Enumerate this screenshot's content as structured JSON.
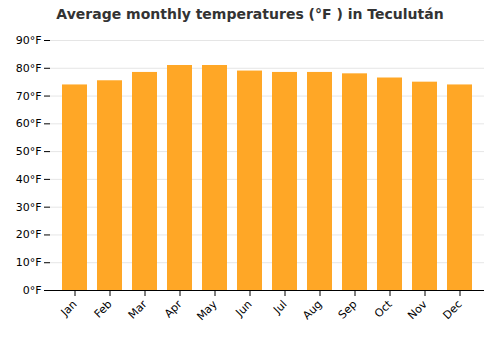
{
  "chart_data": {
    "type": "bar",
    "title": "Average monthly temperatures (°F ) in Teculután",
    "categories": [
      "Jan",
      "Feb",
      "Mar",
      "Apr",
      "May",
      "Jun",
      "Jul",
      "Aug",
      "Sep",
      "Oct",
      "Nov",
      "Dec"
    ],
    "values": [
      74.0,
      75.5,
      78.5,
      81.0,
      81.0,
      79.0,
      78.5,
      78.5,
      78.0,
      76.5,
      75.0,
      74.0
    ],
    "color": "#FFA726",
    "ylim": [
      0,
      90
    ],
    "yticks": [
      {
        "value": 0,
        "label": "0°F"
      },
      {
        "value": 10,
        "label": "10°F"
      },
      {
        "value": 20,
        "label": "20°F"
      },
      {
        "value": 30,
        "label": "30°F"
      },
      {
        "value": 40,
        "label": "40°F"
      },
      {
        "value": 50,
        "label": "50°F"
      },
      {
        "value": 60,
        "label": "60°F"
      },
      {
        "value": 70,
        "label": "70°F"
      },
      {
        "value": 80,
        "label": "80°F"
      },
      {
        "value": 90,
        "label": "90°F"
      }
    ],
    "grid": true
  }
}
